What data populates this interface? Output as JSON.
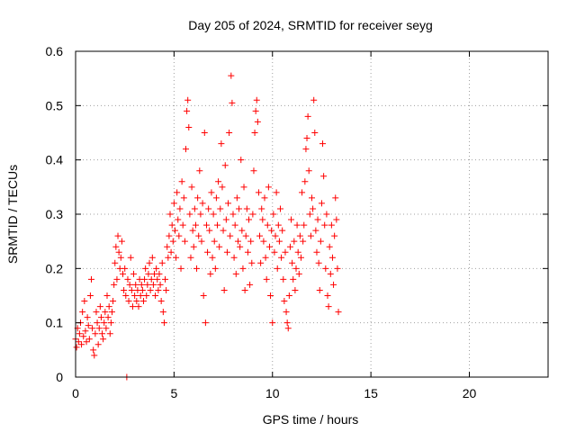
{
  "chart_data": {
    "type": "scatter",
    "title": "Day 205 of 2024, SRMTID for receiver seyg",
    "xlabel": "GPS time / hours",
    "ylabel": "SRMTID / TECUs",
    "xlim": [
      0,
      24
    ],
    "ylim": [
      0,
      0.6
    ],
    "xticks": [
      0,
      5,
      10,
      15,
      20
    ],
    "yticks": [
      0,
      0.1,
      0.2,
      0.3,
      0.4,
      0.5,
      0.6
    ],
    "xtick_labels": [
      "0",
      "5",
      "10",
      "15",
      "20"
    ],
    "ytick_labels": [
      "0",
      "0.1",
      "0.2",
      "0.3",
      "0.4",
      "0.5",
      "0.6"
    ],
    "grid": true,
    "marker": "+",
    "color": "#ff0000",
    "series": [
      {
        "name": "SRMTID",
        "points": [
          [
            0.0,
            0.07
          ],
          [
            0.05,
            0.055
          ],
          [
            0.1,
            0.09
          ],
          [
            0.15,
            0.065
          ],
          [
            0.2,
            0.08
          ],
          [
            0.25,
            0.1
          ],
          [
            0.3,
            0.06
          ],
          [
            0.35,
            0.12
          ],
          [
            0.4,
            0.075
          ],
          [
            0.45,
            0.14
          ],
          [
            0.5,
            0.085
          ],
          [
            0.55,
            0.065
          ],
          [
            0.6,
            0.11
          ],
          [
            0.65,
            0.095
          ],
          [
            0.7,
            0.07
          ],
          [
            0.75,
            0.15
          ],
          [
            0.8,
            0.18
          ],
          [
            0.85,
            0.09
          ],
          [
            0.9,
            0.05
          ],
          [
            0.95,
            0.04
          ],
          [
            1.0,
            0.08
          ],
          [
            1.05,
            0.12
          ],
          [
            1.1,
            0.1
          ],
          [
            1.15,
            0.06
          ],
          [
            1.2,
            0.09
          ],
          [
            1.25,
            0.13
          ],
          [
            1.3,
            0.11
          ],
          [
            1.35,
            0.08
          ],
          [
            1.4,
            0.07
          ],
          [
            1.45,
            0.1
          ],
          [
            1.5,
            0.12
          ],
          [
            1.55,
            0.09
          ],
          [
            1.6,
            0.15
          ],
          [
            1.65,
            0.11
          ],
          [
            1.7,
            0.13
          ],
          [
            1.75,
            0.08
          ],
          [
            1.8,
            0.1
          ],
          [
            1.85,
            0.12
          ],
          [
            1.9,
            0.14
          ],
          [
            1.95,
            0.17
          ],
          [
            2.0,
            0.21
          ],
          [
            2.05,
            0.24
          ],
          [
            2.1,
            0.18
          ],
          [
            2.15,
            0.26
          ],
          [
            2.2,
            0.23
          ],
          [
            2.25,
            0.2
          ],
          [
            2.3,
            0.22
          ],
          [
            2.35,
            0.25
          ],
          [
            2.4,
            0.19
          ],
          [
            2.45,
            0.16
          ],
          [
            2.5,
            0.2
          ],
          [
            2.55,
            0.15
          ],
          [
            2.6,
            0.0
          ],
          [
            2.65,
            0.18
          ],
          [
            2.7,
            0.14
          ],
          [
            2.75,
            0.17
          ],
          [
            2.8,
            0.22
          ],
          [
            2.85,
            0.16
          ],
          [
            2.9,
            0.13
          ],
          [
            2.95,
            0.19
          ],
          [
            3.0,
            0.15
          ],
          [
            3.05,
            0.17
          ],
          [
            3.1,
            0.14
          ],
          [
            3.15,
            0.16
          ],
          [
            3.2,
            0.13
          ],
          [
            3.25,
            0.18
          ],
          [
            3.3,
            0.15
          ],
          [
            3.35,
            0.17
          ],
          [
            3.4,
            0.16
          ],
          [
            3.45,
            0.14
          ],
          [
            3.5,
            0.18
          ],
          [
            3.55,
            0.2
          ],
          [
            3.6,
            0.15
          ],
          [
            3.65,
            0.17
          ],
          [
            3.7,
            0.19
          ],
          [
            3.75,
            0.21
          ],
          [
            3.8,
            0.16
          ],
          [
            3.85,
            0.18
          ],
          [
            3.9,
            0.22
          ],
          [
            3.95,
            0.17
          ],
          [
            4.0,
            0.19
          ],
          [
            4.05,
            0.15
          ],
          [
            4.1,
            0.2
          ],
          [
            4.15,
            0.18
          ],
          [
            4.2,
            0.16
          ],
          [
            4.25,
            0.19
          ],
          [
            4.3,
            0.17
          ],
          [
            4.35,
            0.14
          ],
          [
            4.4,
            0.21
          ],
          [
            4.45,
            0.12
          ],
          [
            4.5,
            0.1
          ],
          [
            4.55,
            0.18
          ],
          [
            4.6,
            0.16
          ],
          [
            4.65,
            0.24
          ],
          [
            4.7,
            0.22
          ],
          [
            4.75,
            0.26
          ],
          [
            4.8,
            0.3
          ],
          [
            4.85,
            0.23
          ],
          [
            4.9,
            0.28
          ],
          [
            4.95,
            0.25
          ],
          [
            5.0,
            0.32
          ],
          [
            5.05,
            0.27
          ],
          [
            5.1,
            0.22
          ],
          [
            5.15,
            0.34
          ],
          [
            5.2,
            0.29
          ],
          [
            5.25,
            0.26
          ],
          [
            5.3,
            0.31
          ],
          [
            5.35,
            0.2
          ],
          [
            5.4,
            0.36
          ],
          [
            5.45,
            0.28
          ],
          [
            5.5,
            0.33
          ],
          [
            5.55,
            0.25
          ],
          [
            5.6,
            0.42
          ],
          [
            5.65,
            0.49
          ],
          [
            5.7,
            0.51
          ],
          [
            5.75,
            0.46
          ],
          [
            5.8,
            0.3
          ],
          [
            5.85,
            0.22
          ],
          [
            5.9,
            0.35
          ],
          [
            5.95,
            0.27
          ],
          [
            6.0,
            0.24
          ],
          [
            6.05,
            0.31
          ],
          [
            6.1,
            0.28
          ],
          [
            6.15,
            0.2
          ],
          [
            6.2,
            0.33
          ],
          [
            6.25,
            0.26
          ],
          [
            6.3,
            0.38
          ],
          [
            6.35,
            0.3
          ],
          [
            6.4,
            0.25
          ],
          [
            6.45,
            0.32
          ],
          [
            6.5,
            0.15
          ],
          [
            6.55,
            0.45
          ],
          [
            6.6,
            0.1
          ],
          [
            6.65,
            0.28
          ],
          [
            6.7,
            0.23
          ],
          [
            6.75,
            0.31
          ],
          [
            6.8,
            0.27
          ],
          [
            6.85,
            0.19
          ],
          [
            6.9,
            0.34
          ],
          [
            6.95,
            0.22
          ],
          [
            7.0,
            0.3
          ],
          [
            7.05,
            0.25
          ],
          [
            7.1,
            0.2
          ],
          [
            7.15,
            0.33
          ],
          [
            7.2,
            0.28
          ],
          [
            7.25,
            0.36
          ],
          [
            7.3,
            0.24
          ],
          [
            7.35,
            0.31
          ],
          [
            7.4,
            0.43
          ],
          [
            7.45,
            0.35
          ],
          [
            7.5,
            0.27
          ],
          [
            7.55,
            0.16
          ],
          [
            7.6,
            0.39
          ],
          [
            7.65,
            0.29
          ],
          [
            7.7,
            0.23
          ],
          [
            7.75,
            0.32
          ],
          [
            7.8,
            0.45
          ],
          [
            7.85,
            0.26
          ],
          [
            7.9,
            0.555
          ],
          [
            7.95,
            0.505
          ],
          [
            8.0,
            0.3
          ],
          [
            8.05,
            0.22
          ],
          [
            8.1,
            0.28
          ],
          [
            8.15,
            0.19
          ],
          [
            8.2,
            0.33
          ],
          [
            8.25,
            0.25
          ],
          [
            8.3,
            0.31
          ],
          [
            8.35,
            0.24
          ],
          [
            8.4,
            0.4
          ],
          [
            8.45,
            0.27
          ],
          [
            8.5,
            0.2
          ],
          [
            8.55,
            0.35
          ],
          [
            8.6,
            0.16
          ],
          [
            8.65,
            0.26
          ],
          [
            8.7,
            0.31
          ],
          [
            8.75,
            0.23
          ],
          [
            8.8,
            0.29
          ],
          [
            8.85,
            0.17
          ],
          [
            8.9,
            0.25
          ],
          [
            8.95,
            0.21
          ],
          [
            9.0,
            0.3
          ],
          [
            9.05,
            0.38
          ],
          [
            9.1,
            0.45
          ],
          [
            9.15,
            0.49
          ],
          [
            9.2,
            0.51
          ],
          [
            9.25,
            0.47
          ],
          [
            9.3,
            0.34
          ],
          [
            9.35,
            0.26
          ],
          [
            9.4,
            0.21
          ],
          [
            9.45,
            0.31
          ],
          [
            9.5,
            0.29
          ],
          [
            9.55,
            0.25
          ],
          [
            9.6,
            0.33
          ],
          [
            9.65,
            0.22
          ],
          [
            9.7,
            0.18
          ],
          [
            9.75,
            0.28
          ],
          [
            9.8,
            0.35
          ],
          [
            9.85,
            0.24
          ],
          [
            9.9,
            0.15
          ],
          [
            9.95,
            0.27
          ],
          [
            10.0,
            0.1
          ],
          [
            10.05,
            0.3
          ],
          [
            10.1,
            0.23
          ],
          [
            10.15,
            0.26
          ],
          [
            10.2,
            0.34
          ],
          [
            10.25,
            0.2
          ],
          [
            10.3,
            0.28
          ],
          [
            10.35,
            0.25
          ],
          [
            10.4,
            0.31
          ],
          [
            10.45,
            0.22
          ],
          [
            10.5,
            0.27
          ],
          [
            10.55,
            0.18
          ],
          [
            10.6,
            0.14
          ],
          [
            10.65,
            0.23
          ],
          [
            10.7,
            0.12
          ],
          [
            10.75,
            0.1
          ],
          [
            10.8,
            0.09
          ],
          [
            10.85,
            0.15
          ],
          [
            10.9,
            0.24
          ],
          [
            10.95,
            0.29
          ],
          [
            11.0,
            0.21
          ],
          [
            11.05,
            0.18
          ],
          [
            11.1,
            0.25
          ],
          [
            11.15,
            0.16
          ],
          [
            11.2,
            0.2
          ],
          [
            11.25,
            0.28
          ],
          [
            11.3,
            0.23
          ],
          [
            11.35,
            0.19
          ],
          [
            11.4,
            0.26
          ],
          [
            11.45,
            0.22
          ],
          [
            11.5,
            0.34
          ],
          [
            11.55,
            0.25
          ],
          [
            11.6,
            0.28
          ],
          [
            11.65,
            0.36
          ],
          [
            11.7,
            0.42
          ],
          [
            11.75,
            0.44
          ],
          [
            11.8,
            0.48
          ],
          [
            11.85,
            0.38
          ],
          [
            11.9,
            0.3
          ],
          [
            11.95,
            0.26
          ],
          [
            12.0,
            0.33
          ],
          [
            12.05,
            0.31
          ],
          [
            12.1,
            0.51
          ],
          [
            12.15,
            0.45
          ],
          [
            12.2,
            0.27
          ],
          [
            12.25,
            0.23
          ],
          [
            12.3,
            0.29
          ],
          [
            12.35,
            0.21
          ],
          [
            12.4,
            0.16
          ],
          [
            12.45,
            0.25
          ],
          [
            12.5,
            0.32
          ],
          [
            12.55,
            0.43
          ],
          [
            12.6,
            0.37
          ],
          [
            12.65,
            0.28
          ],
          [
            12.7,
            0.2
          ],
          [
            12.75,
            0.3
          ],
          [
            12.8,
            0.15
          ],
          [
            12.85,
            0.13
          ],
          [
            12.9,
            0.24
          ],
          [
            12.95,
            0.19
          ],
          [
            13.0,
            0.28
          ],
          [
            13.05,
            0.22
          ],
          [
            13.1,
            0.17
          ],
          [
            13.15,
            0.26
          ],
          [
            13.2,
            0.33
          ],
          [
            13.25,
            0.29
          ],
          [
            13.3,
            0.2
          ],
          [
            13.35,
            0.12
          ]
        ]
      }
    ]
  }
}
